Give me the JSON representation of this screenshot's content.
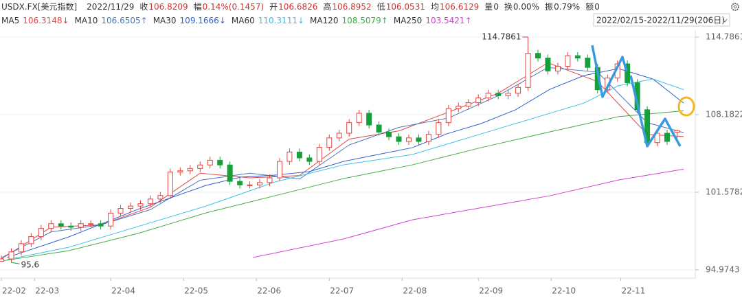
{
  "quote": {
    "symbol": "USDX.FX[美元指数]",
    "date": "2022/11/29",
    "fields": [
      {
        "label": "收",
        "value": "106.8209"
      },
      {
        "label": "幅",
        "value": "0.14%(0.1457)"
      },
      {
        "label": "开",
        "value": "106.6826"
      },
      {
        "label": "高",
        "value": "106.8952"
      },
      {
        "label": "低",
        "value": "106.0531"
      },
      {
        "label": "均",
        "value": "106.6129"
      },
      {
        "label": "量",
        "value": "0"
      },
      {
        "label": "换",
        "value": "0.00%"
      },
      {
        "label": "振",
        "value": "0.79%"
      },
      {
        "label": "额",
        "value": "0"
      }
    ]
  },
  "chart_data": {
    "type": "candlestick",
    "date_range": "2022/02/15-2022/11/29(206日)",
    "up_color": "#e8413c",
    "down_color": "#17a03a",
    "x": [
      0,
      3,
      6,
      9,
      12,
      15,
      18,
      21,
      24,
      27,
      30,
      33,
      36,
      39,
      42,
      45,
      48,
      51,
      54,
      57,
      60,
      63,
      66,
      69,
      72,
      75,
      78,
      81,
      84,
      87,
      90,
      93,
      96,
      99,
      102,
      105,
      108,
      111,
      114,
      117,
      120,
      123,
      126,
      129,
      132,
      135,
      138,
      141,
      144,
      147,
      150,
      153,
      156,
      159,
      162,
      165,
      168,
      171,
      174,
      177,
      180,
      183,
      186,
      189,
      192,
      195,
      198,
      201,
      204
    ],
    "open": [
      95.7,
      95.9,
      96.5,
      97.2,
      97.8,
      98.5,
      98.9,
      98.7,
      98.6,
      98.9,
      98.9,
      98.7,
      99.8,
      100.2,
      100.4,
      100.6,
      101.0,
      101.3,
      103.3,
      103.4,
      103.6,
      103.9,
      104.3,
      103.9,
      102.5,
      102.2,
      102.2,
      102.4,
      102.8,
      104.2,
      105.0,
      104.5,
      104.2,
      105.4,
      106.2,
      106.6,
      107.5,
      108.3,
      107.3,
      106.7,
      106.3,
      105.9,
      106.2,
      105.9,
      106.5,
      107.5,
      108.7,
      108.9,
      109.2,
      109.6,
      110.0,
      109.8,
      110.0,
      110.5,
      113.4,
      113.0,
      111.9,
      112.3,
      113.2,
      113.0,
      112.2,
      110.3,
      111.3,
      112.5,
      110.9,
      108.6,
      105.8,
      106.6,
      106.6826
    ],
    "high": [
      96.2,
      96.8,
      97.5,
      98.1,
      98.8,
      99.2,
      99.2,
      99.0,
      99.2,
      99.2,
      99.2,
      100.1,
      100.5,
      100.7,
      100.9,
      101.3,
      101.6,
      103.6,
      103.7,
      103.9,
      104.2,
      104.6,
      104.6,
      104.2,
      102.8,
      102.5,
      102.7,
      103.1,
      104.5,
      105.3,
      105.3,
      104.8,
      105.7,
      106.5,
      106.9,
      107.8,
      108.6,
      108.6,
      107.6,
      107.0,
      106.6,
      106.5,
      106.5,
      106.8,
      107.8,
      109.0,
      109.2,
      109.5,
      109.9,
      110.3,
      110.3,
      110.3,
      110.8,
      114.7861,
      113.7,
      113.3,
      112.6,
      113.5,
      113.5,
      113.3,
      112.5,
      111.6,
      112.8,
      112.8,
      111.2,
      108.9,
      106.9,
      106.9,
      106.8952
    ],
    "low": [
      95.6775,
      95.6,
      96.2,
      96.9,
      97.5,
      98.2,
      98.4,
      98.3,
      98.3,
      98.6,
      98.4,
      98.4,
      99.5,
      99.9,
      100.1,
      100.3,
      100.7,
      101.0,
      103.0,
      103.1,
      103.3,
      103.6,
      103.6,
      102.2,
      101.9,
      101.9,
      101.9,
      102.1,
      102.5,
      103.9,
      104.2,
      103.9,
      103.9,
      105.1,
      105.9,
      106.3,
      107.2,
      107.0,
      106.4,
      106.0,
      105.6,
      105.6,
      105.6,
      105.6,
      106.2,
      107.2,
      108.4,
      108.6,
      108.9,
      109.3,
      109.5,
      109.5,
      109.7,
      110.2,
      112.7,
      111.6,
      111.6,
      112.0,
      112.7,
      111.9,
      110.0,
      110.0,
      111.0,
      110.6,
      108.3,
      105.5,
      105.5,
      105.6,
      106.0531
    ],
    "close": [
      95.9,
      96.5,
      97.2,
      97.8,
      98.5,
      98.9,
      98.7,
      98.6,
      98.9,
      98.9,
      98.7,
      99.8,
      100.2,
      100.4,
      100.6,
      101.0,
      101.3,
      103.3,
      103.4,
      103.6,
      103.9,
      104.3,
      103.9,
      102.5,
      102.2,
      102.2,
      102.4,
      102.8,
      104.2,
      105.0,
      104.5,
      104.2,
      105.4,
      106.2,
      106.6,
      107.5,
      108.3,
      107.3,
      106.7,
      106.3,
      105.9,
      106.2,
      105.9,
      106.5,
      107.5,
      108.7,
      108.9,
      109.2,
      109.6,
      110.0,
      109.8,
      110.0,
      110.5,
      113.4,
      113.0,
      111.9,
      112.3,
      113.2,
      113.0,
      112.2,
      110.3,
      111.3,
      112.5,
      110.9,
      108.6,
      105.8,
      106.6,
      105.9,
      106.8209
    ],
    "ma_lines": [
      {
        "name": "MA5",
        "legend_value": 106.3148,
        "trend": "↓",
        "color": "#e04848",
        "x": [
          0,
          15,
          30,
          45,
          60,
          75,
          90,
          105,
          120,
          135,
          150,
          165,
          180,
          195,
          206
        ],
        "values": [
          95.9,
          98.6,
          98.8,
          100.3,
          103.2,
          102.8,
          103.0,
          106.1,
          106.8,
          108.4,
          110.0,
          112.6,
          111.0,
          106.5,
          106.3148
        ]
      },
      {
        "name": "MA10",
        "legend_value": 106.6505,
        "trend": "↑",
        "color": "#4a78b8",
        "x": [
          0,
          15,
          30,
          45,
          60,
          75,
          90,
          105,
          120,
          135,
          150,
          165,
          180,
          195,
          206
        ],
        "values": [
          96.0,
          98.2,
          98.8,
          100.1,
          102.6,
          103.2,
          102.7,
          105.6,
          107.1,
          107.9,
          109.8,
          112.2,
          111.8,
          107.5,
          106.6505
        ]
      },
      {
        "name": "MA30",
        "legend_value": 109.1666,
        "trend": "↓",
        "color": "#2f5fd0",
        "x": [
          1.7,
          20.3,
          41.1,
          61.8,
          72.2,
          82.6,
          92.9,
          103.3,
          113.7,
          124.1,
          134.4,
          144.8,
          155.2,
          165.6,
          175.9,
          186.3,
          196.7,
          206
        ],
        "values": [
          96.02,
          97.77,
          100.11,
          102.16,
          102.86,
          103.04,
          103.33,
          104.2,
          104.79,
          105.37,
          106.54,
          107.42,
          108.59,
          110.34,
          111.51,
          112.1,
          111.22,
          109.1666
        ]
      },
      {
        "name": "MA60",
        "legend_value": 110.3111,
        "trend": "↓",
        "color": "#3cc0e8",
        "x": [
          1.7,
          20.3,
          41.1,
          61.8,
          82.6,
          103.3,
          124.1,
          144.8,
          165.6,
          175.9,
          186.3,
          196.7,
          206
        ],
        "values": [
          95.84,
          96.89,
          98.65,
          100.4,
          102.45,
          103.91,
          104.79,
          106.54,
          108.3,
          109.17,
          110.64,
          111.22,
          110.3111
        ]
      },
      {
        "name": "MA120",
        "legend_value": 108.5079,
        "trend": "↑",
        "color": "#3fae3f",
        "x": [
          0,
          20.3,
          41.1,
          61.8,
          82.6,
          103.3,
          124.1,
          144.8,
          165.6,
          186.3,
          206
        ],
        "values": [
          95.72,
          96.6,
          98.06,
          99.82,
          101.28,
          102.74,
          103.91,
          105.37,
          106.72,
          108.01,
          108.5079
        ]
      },
      {
        "name": "MA250",
        "legend_value": 103.5421,
        "trend": "↑",
        "color": "#d23fd2",
        "x": [
          75.9,
          103.3,
          124.1,
          165.6,
          186.3,
          206
        ],
        "values": [
          96.02,
          97.6,
          99.23,
          101.28,
          102.62,
          103.5421
        ]
      }
    ],
    "xlim": [
      0,
      209.5
    ],
    "ylim": [
      94.27,
      115.31
    ],
    "yticks": [
      114.7861,
      108.1822,
      101.5782,
      94.9743
    ],
    "xticks": [
      {
        "value": 0,
        "label": "22-02"
      },
      {
        "value": 10,
        "label": "22-03"
      },
      {
        "value": 33,
        "label": "22-04"
      },
      {
        "value": 55,
        "label": "22-05"
      },
      {
        "value": 77,
        "label": "22-06"
      },
      {
        "value": 99,
        "label": "22-07"
      },
      {
        "value": 121,
        "label": "22-08"
      },
      {
        "value": 144,
        "label": "22-09"
      },
      {
        "value": 166,
        "label": "22-10"
      },
      {
        "value": 187,
        "label": "22-11"
      }
    ],
    "grid": true
  }
}
